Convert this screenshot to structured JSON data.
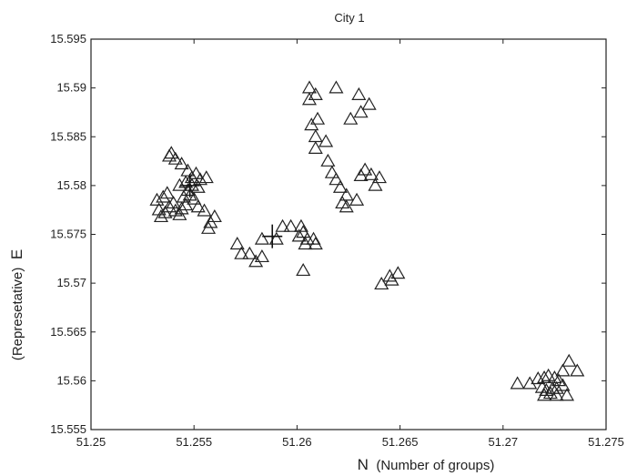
{
  "chart_data": {
    "type": "scatter",
    "title": "City 1",
    "xlabel": "N (Number of groups)",
    "ylabel": "(Represetative) E",
    "xlabel_main": "N",
    "xlabel_sub": "(Number of groups)",
    "ylabel_sub": "(Represetative)",
    "ylabel_main": "E",
    "xlim": [
      51.25,
      51.275
    ],
    "ylim": [
      15.555,
      15.595
    ],
    "xticks": [
      "51.25",
      "51.255",
      "51.26",
      "51.265",
      "51.27",
      "51.275"
    ],
    "yticks": [
      "15.555",
      "15.56",
      "15.565",
      "15.57",
      "15.575",
      "15.58",
      "15.585",
      "15.59",
      "15.595"
    ],
    "grid": false,
    "marker": "triangle-up",
    "series": [
      {
        "values": [
          [
            51.2532,
            15.5785
          ],
          [
            51.2535,
            15.5788
          ],
          [
            51.2533,
            15.5775
          ],
          [
            51.2534,
            15.5768
          ],
          [
            51.2536,
            15.5772
          ],
          [
            51.2538,
            15.5778
          ],
          [
            51.2537,
            15.5792
          ],
          [
            51.254,
            15.5782
          ],
          [
            51.2541,
            15.5774
          ],
          [
            51.2543,
            15.577
          ],
          [
            51.2544,
            15.5776
          ],
          [
            51.2546,
            15.578
          ],
          [
            51.2545,
            15.5788
          ],
          [
            51.2547,
            15.5795
          ],
          [
            51.2543,
            15.58
          ],
          [
            51.2546,
            15.5803
          ],
          [
            51.2549,
            15.58
          ],
          [
            51.2552,
            15.5798
          ],
          [
            51.2549,
            15.5808
          ],
          [
            51.2551,
            15.5812
          ],
          [
            51.2553,
            15.5806
          ],
          [
            51.2556,
            15.5808
          ],
          [
            51.2547,
            15.5815
          ],
          [
            51.2544,
            15.5822
          ],
          [
            51.2541,
            15.5827
          ],
          [
            51.2538,
            15.583
          ],
          [
            51.2539,
            15.5833
          ],
          [
            51.2552,
            15.5778
          ],
          [
            51.2555,
            15.5774
          ],
          [
            51.2558,
            15.5762
          ],
          [
            51.256,
            15.5768
          ],
          [
            51.2557,
            15.5756
          ],
          [
            51.2548,
            15.579
          ],
          [
            51.255,
            15.5786
          ],
          [
            51.2571,
            15.574
          ],
          [
            51.2573,
            15.573
          ],
          [
            51.2577,
            15.573
          ],
          [
            51.258,
            15.5722
          ],
          [
            51.2583,
            15.5727
          ],
          [
            51.2583,
            15.5745
          ],
          [
            51.259,
            15.5745
          ],
          [
            51.2593,
            15.5758
          ],
          [
            51.2597,
            15.5758
          ],
          [
            51.2601,
            15.5748
          ],
          [
            51.2602,
            15.5758
          ],
          [
            51.2603,
            15.5752
          ],
          [
            51.2605,
            15.5745
          ],
          [
            51.2604,
            15.574
          ],
          [
            51.2608,
            15.5745
          ],
          [
            51.2609,
            15.574
          ],
          [
            51.2603,
            15.5713
          ],
          [
            51.2606,
            15.59
          ],
          [
            51.2609,
            15.5893
          ],
          [
            51.2606,
            15.5888
          ],
          [
            51.2619,
            15.59
          ],
          [
            51.263,
            15.5893
          ],
          [
            51.2635,
            15.5883
          ],
          [
            51.2631,
            15.5875
          ],
          [
            51.2626,
            15.5868
          ],
          [
            51.261,
            15.5868
          ],
          [
            51.2607,
            15.5862
          ],
          [
            51.2609,
            15.585
          ],
          [
            51.2614,
            15.5845
          ],
          [
            51.2609,
            15.5838
          ],
          [
            51.2615,
            15.5825
          ],
          [
            51.2617,
            15.5813
          ],
          [
            51.2619,
            15.5806
          ],
          [
            51.2621,
            15.5798
          ],
          [
            51.2624,
            15.579
          ],
          [
            51.2629,
            15.5785
          ],
          [
            51.2622,
            15.5782
          ],
          [
            51.2624,
            15.5778
          ],
          [
            51.2633,
            15.5816
          ],
          [
            51.2631,
            15.581
          ],
          [
            51.2636,
            15.5811
          ],
          [
            51.264,
            15.5808
          ],
          [
            51.2638,
            15.58
          ],
          [
            51.2641,
            15.5699
          ],
          [
            51.2645,
            15.5707
          ],
          [
            51.2649,
            15.571
          ],
          [
            51.2646,
            15.5703
          ],
          [
            51.2707,
            15.5597
          ],
          [
            51.2713,
            15.5597
          ],
          [
            51.2717,
            15.5602
          ],
          [
            51.272,
            15.5603
          ],
          [
            51.2722,
            15.5605
          ],
          [
            51.2725,
            15.5603
          ],
          [
            51.2719,
            15.5593
          ],
          [
            51.2721,
            15.559
          ],
          [
            51.272,
            15.5585
          ],
          [
            51.2723,
            15.5587
          ],
          [
            51.2726,
            15.5592
          ],
          [
            51.2727,
            15.56
          ],
          [
            51.2729,
            15.5595
          ],
          [
            51.2726,
            15.5585
          ],
          [
            51.2731,
            15.5585
          ],
          [
            51.2729,
            15.561
          ],
          [
            51.2732,
            15.562
          ],
          [
            51.2736,
            15.561
          ],
          [
            51.2724,
            15.5592
          ]
        ]
      }
    ],
    "crosshairs": [
      [
        51.2548,
        15.58
      ],
      [
        51.2588,
        15.5748
      ]
    ]
  }
}
